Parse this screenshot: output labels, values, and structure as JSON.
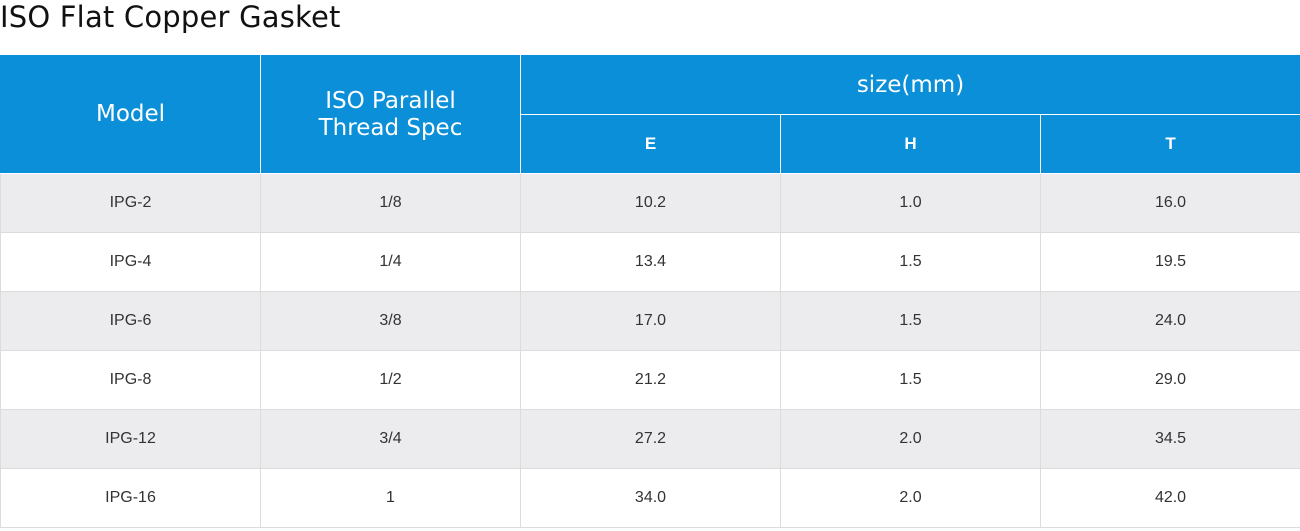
{
  "title": "ISO Flat Copper Gasket",
  "table": {
    "headers": {
      "model": "Model",
      "thread_spec": "ISO Parallel Thread Spec",
      "size_group": "size(mm)",
      "e": "E",
      "h": "H",
      "t": "T"
    },
    "rows": [
      {
        "model": "IPG-2",
        "thread": "1/8",
        "e": "10.2",
        "h": "1.0",
        "t": "16.0"
      },
      {
        "model": "IPG-4",
        "thread": "1/4",
        "e": "13.4",
        "h": "1.5",
        "t": "19.5"
      },
      {
        "model": "IPG-6",
        "thread": "3/8",
        "e": "17.0",
        "h": "1.5",
        "t": "24.0"
      },
      {
        "model": "IPG-8",
        "thread": "1/2",
        "e": "21.2",
        "h": "1.5",
        "t": "29.0"
      },
      {
        "model": "IPG-12",
        "thread": "3/4",
        "e": "27.2",
        "h": "2.0",
        "t": "34.5"
      },
      {
        "model": "IPG-16",
        "thread": "1",
        "e": "34.0",
        "h": "2.0",
        "t": "42.0"
      }
    ]
  },
  "colors": {
    "header_bg": "#0a8fd8",
    "row_alt_bg": "#ececee"
  }
}
